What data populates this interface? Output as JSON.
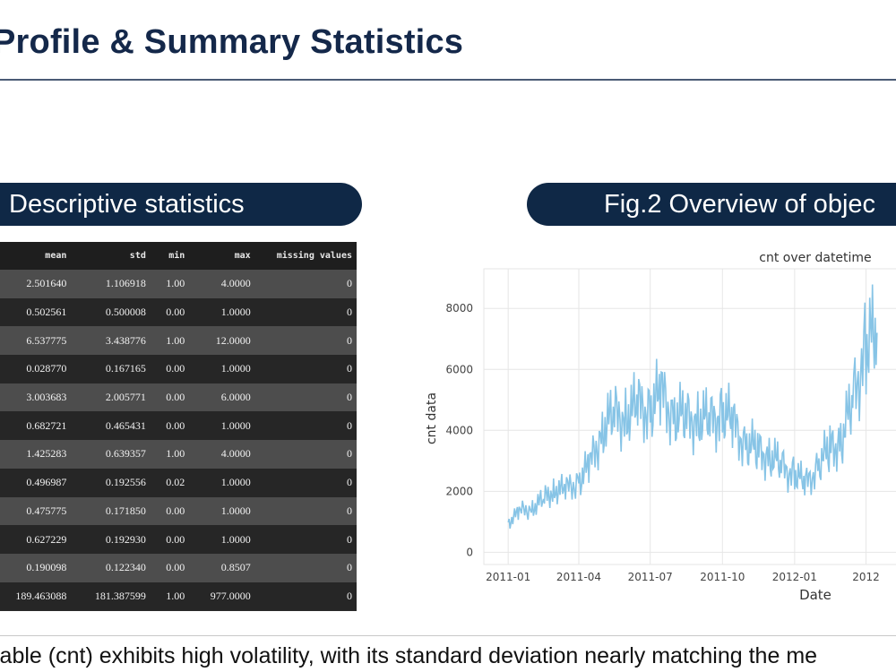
{
  "slide": {
    "title": "Profile & Summary Statistics",
    "left_pill": "Descriptive statistics",
    "right_pill": "Fig.2 Overview of objec",
    "bottom_text": "iable (cnt) exhibits high volatility, with its standard deviation nearly matching the me"
  },
  "stats_table": {
    "headers": [
      "mean",
      "std",
      "min",
      "max",
      "missing values"
    ],
    "rows": [
      {
        "mean": "2.501640",
        "std": "1.106918",
        "min": "1.00",
        "max": "4.0000",
        "missing": "0"
      },
      {
        "mean": "0.502561",
        "std": "0.500008",
        "min": "0.00",
        "max": "1.0000",
        "missing": "0"
      },
      {
        "mean": "6.537775",
        "std": "3.438776",
        "min": "1.00",
        "max": "12.0000",
        "missing": "0"
      },
      {
        "mean": "0.028770",
        "std": "0.167165",
        "min": "0.00",
        "max": "1.0000",
        "missing": "0"
      },
      {
        "mean": "3.003683",
        "std": "2.005771",
        "min": "0.00",
        "max": "6.0000",
        "missing": "0"
      },
      {
        "mean": "0.682721",
        "std": "0.465431",
        "min": "0.00",
        "max": "1.0000",
        "missing": "0"
      },
      {
        "mean": "1.425283",
        "std": "0.639357",
        "min": "1.00",
        "max": "4.0000",
        "missing": "0"
      },
      {
        "mean": "0.496987",
        "std": "0.192556",
        "min": "0.02",
        "max": "1.0000",
        "missing": "0"
      },
      {
        "mean": "0.475775",
        "std": "0.171850",
        "min": "0.00",
        "max": "1.0000",
        "missing": "0"
      },
      {
        "mean": "0.627229",
        "std": "0.192930",
        "min": "0.00",
        "max": "1.0000",
        "missing": "0"
      },
      {
        "mean": "0.190098",
        "std": "0.122340",
        "min": "0.00",
        "max": "0.8507",
        "missing": "0"
      },
      {
        "mean": "189.463088",
        "std": "181.387599",
        "min": "1.00",
        "max": "977.0000",
        "missing": "0"
      }
    ]
  },
  "chart_data": {
    "type": "line",
    "title": "cnt over datetime",
    "xlabel": "Date",
    "ylabel": "cnt data",
    "x_ticks": [
      "2011-01",
      "2011-04",
      "2011-07",
      "2011-10",
      "2012-01",
      "2012"
    ],
    "y_ticks": [
      0,
      2000,
      4000,
      6000,
      8000
    ],
    "ylim": [
      -400,
      9300
    ],
    "grid": true,
    "line_color": "#87c4e6",
    "series": [
      {
        "x": [
          "2011-01-01",
          "2011-01-15",
          "2011-02-01",
          "2011-02-15",
          "2011-03-01",
          "2011-03-15",
          "2011-04-01",
          "2011-04-15",
          "2011-05-01",
          "2011-05-15",
          "2011-06-01",
          "2011-06-15",
          "2011-07-01",
          "2011-07-15",
          "2011-08-01",
          "2011-08-15",
          "2011-09-01",
          "2011-09-15",
          "2011-10-01",
          "2011-10-15",
          "2011-11-01",
          "2011-11-15",
          "2011-12-01",
          "2011-12-15",
          "2012-01-01",
          "2012-01-15",
          "2012-02-01",
          "2012-02-15",
          "2012-03-01",
          "2012-03-15",
          "2012-04-01",
          "2012-04-15"
        ],
        "values": [
          985,
          1300,
          1500,
          1700,
          2100,
          2000,
          2400,
          2800,
          4100,
          4400,
          4600,
          4700,
          4800,
          5100,
          4600,
          4300,
          4500,
          4200,
          4700,
          4100,
          3600,
          3300,
          3200,
          2800,
          2600,
          2200,
          2900,
          3400,
          3700,
          5000,
          6800,
          7200
        ]
      }
    ]
  }
}
